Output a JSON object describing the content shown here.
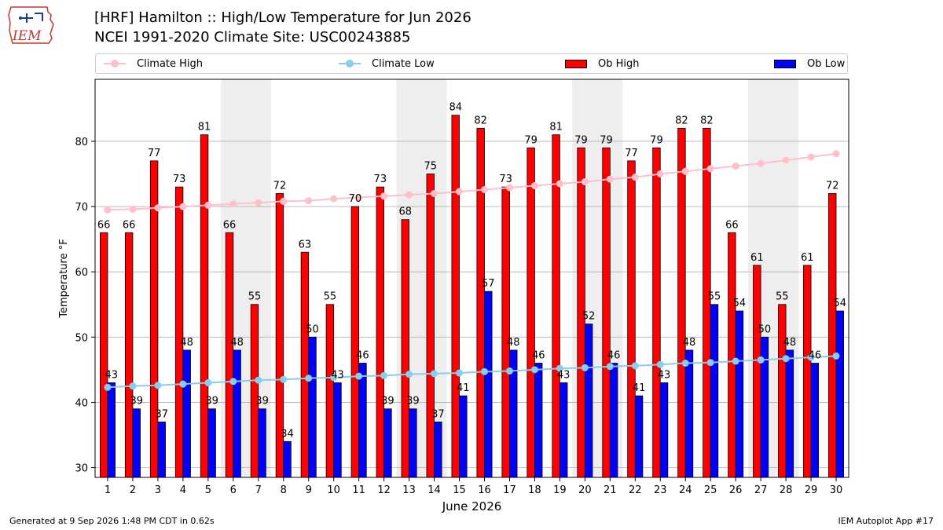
{
  "logo": {
    "text": "IEM"
  },
  "header": {
    "title_line1": "[HRF] Hamilton :: High/Low Temperature for Jun 2026",
    "title_line2": "NCEI 1991-2020 Climate Site: USC00243885"
  },
  "legend": [
    {
      "label": "Climate High",
      "kind": "line",
      "color": "#ffc0cb"
    },
    {
      "label": "Climate Low",
      "kind": "line",
      "color": "#87ceeb"
    },
    {
      "label": "Ob High",
      "kind": "bar",
      "color": "#ff0000"
    },
    {
      "label": "Ob Low",
      "kind": "bar",
      "color": "#0000ff"
    }
  ],
  "chart_data": {
    "type": "bar",
    "xlabel": "June 2026",
    "ylabel": "Temperature °F",
    "ylim": [
      28.5,
      89.5
    ],
    "yticks": [
      30,
      40,
      50,
      60,
      70,
      80
    ],
    "grid": true,
    "legend_position": "top",
    "categories": [
      "1",
      "2",
      "3",
      "4",
      "5",
      "6",
      "7",
      "8",
      "9",
      "10",
      "11",
      "12",
      "13",
      "14",
      "15",
      "16",
      "17",
      "18",
      "19",
      "20",
      "21",
      "22",
      "23",
      "24",
      "25",
      "26",
      "27",
      "28",
      "29",
      "30"
    ],
    "weekend_shading": [
      [
        6,
        7
      ],
      [
        13,
        14
      ],
      [
        20,
        21
      ],
      [
        27,
        28
      ]
    ],
    "series": [
      {
        "name": "Ob High",
        "kind": "bar",
        "color": "#ff0000",
        "values": [
          66,
          66,
          77,
          73,
          81,
          66,
          55,
          72,
          63,
          55,
          70,
          73,
          68,
          75,
          84,
          82,
          73,
          79,
          81,
          79,
          79,
          77,
          79,
          82,
          82,
          66,
          61,
          55,
          61,
          72
        ]
      },
      {
        "name": "Ob Low",
        "kind": "bar",
        "color": "#0000ff",
        "values": [
          43,
          39,
          37,
          48,
          39,
          48,
          39,
          34,
          50,
          43,
          46,
          39,
          39,
          37,
          41,
          57,
          48,
          46,
          43,
          52,
          46,
          41,
          43,
          48,
          55,
          54,
          50,
          48,
          46,
          54
        ]
      },
      {
        "name": "Climate High",
        "kind": "line",
        "color": "#ffc0cb",
        "values": [
          69.5,
          69.6,
          69.8,
          70.0,
          70.2,
          70.4,
          70.6,
          70.8,
          70.9,
          71.2,
          71.4,
          71.6,
          71.8,
          72.0,
          72.3,
          72.6,
          72.9,
          73.2,
          73.5,
          73.8,
          74.2,
          74.5,
          75.0,
          75.4,
          75.8,
          76.2,
          76.6,
          77.1,
          77.6,
          78.1
        ]
      },
      {
        "name": "Climate Low",
        "kind": "line",
        "color": "#87ceeb",
        "values": [
          42.3,
          42.5,
          42.6,
          42.8,
          43.0,
          43.2,
          43.4,
          43.5,
          43.7,
          43.8,
          44.0,
          44.1,
          44.3,
          44.4,
          44.5,
          44.7,
          44.8,
          45.0,
          45.2,
          45.3,
          45.5,
          45.6,
          45.8,
          46.0,
          46.1,
          46.3,
          46.5,
          46.7,
          46.9,
          47.1
        ]
      }
    ]
  },
  "footer": {
    "generated": "Generated at 9 Sep 2026 1:48 PM CDT in 0.62s",
    "app": "IEM Autoplot App #17"
  }
}
